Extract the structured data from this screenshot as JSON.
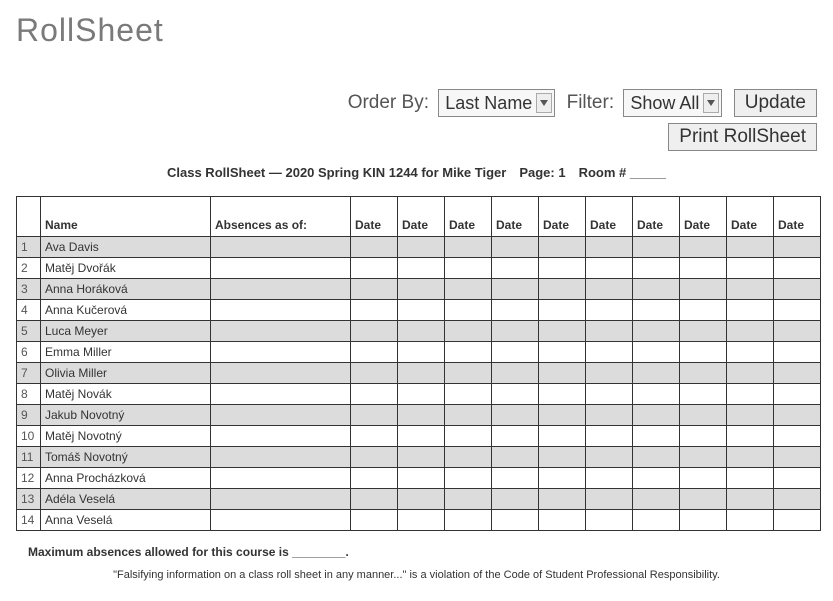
{
  "title": "RollSheet",
  "controls": {
    "order_by_label": "Order By:",
    "order_by_value": "Last Name",
    "filter_label": "Filter:",
    "filter_value": "Show All",
    "update_label": "Update",
    "print_label": "Print RollSheet"
  },
  "caption": "Class RollSheet — 2020 Spring KIN 1244 for Mike Tiger Page: 1 Room # _____",
  "headers": {
    "row_num": "",
    "name": "Name",
    "absences": "Absences as of:",
    "date": "Date"
  },
  "date_columns": 10,
  "rows": [
    {
      "n": "1",
      "name": "Ava Davis"
    },
    {
      "n": "2",
      "name": "Matěj Dvořák"
    },
    {
      "n": "3",
      "name": "Anna Horáková"
    },
    {
      "n": "4",
      "name": "Anna Kučerová"
    },
    {
      "n": "5",
      "name": "Luca Meyer"
    },
    {
      "n": "6",
      "name": "Emma Miller"
    },
    {
      "n": "7",
      "name": "Olivia Miller"
    },
    {
      "n": "8",
      "name": "Matěj Novák"
    },
    {
      "n": "9",
      "name": "Jakub Novotný"
    },
    {
      "n": "10",
      "name": "Matěj Novotný"
    },
    {
      "n": "11",
      "name": "Tomáš Novotný"
    },
    {
      "n": "12",
      "name": "Anna Procházková"
    },
    {
      "n": "13",
      "name": "Adéla Veselá"
    },
    {
      "n": "14",
      "name": "Anna Veselá"
    }
  ],
  "footer": {
    "max_absences": "Maximum absences allowed for this course is ________.",
    "disclaimer": "\"Falsifying information on a class roll sheet in any manner...\" is a violation of the Code of Student Professional Responsibility."
  }
}
